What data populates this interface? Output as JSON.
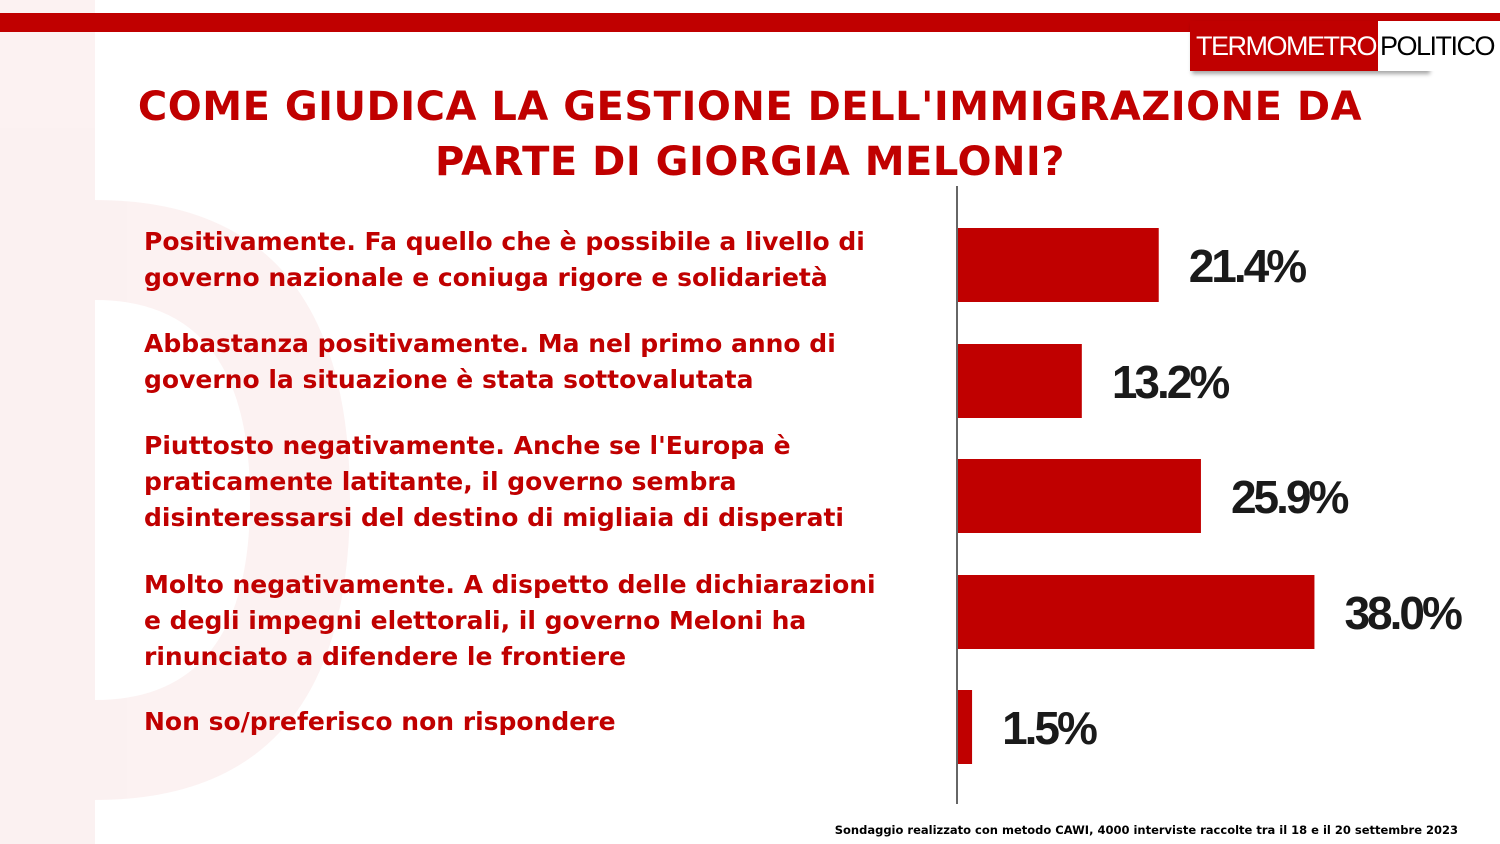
{
  "brand": {
    "logo_left": "TERMOMETRO",
    "logo_right": "POLITICO",
    "accent_color": "#c00000"
  },
  "title": {
    "line1": "COME GIUDICA LA GESTIONE DELL'IMMIGRAZIONE DA",
    "line2": "PARTE DI GIORGIA MELONI?"
  },
  "answers": [
    {
      "lines": [
        "Positivamente. Fa quello che è possibile a livello di",
        "governo nazionale e coniuga rigore e solidarietà"
      ]
    },
    {
      "lines": [
        "Abbastanza positivamente. Ma nel primo anno di",
        "governo la situazione è stata sottovalutata"
      ]
    },
    {
      "lines": [
        "Piuttosto negativamente. Anche se l'Europa è",
        "praticamente latitante, il governo sembra",
        "disinteressarsi del destino di migliaia di disperati"
      ]
    },
    {
      "lines": [
        "Molto negativamente. A dispetto delle dichiarazioni",
        "e degli impegni elettorali, il governo Meloni ha",
        "rinunciato a difendere le frontiere"
      ]
    },
    {
      "lines": [
        "Non so/preferisco non rispondere"
      ]
    }
  ],
  "chart_data": {
    "type": "bar",
    "orientation": "horizontal",
    "title": "COME GIUDICA LA GESTIONE DELL'IMMIGRAZIONE DA PARTE DI GIORGIA MELONI?",
    "categories": [
      "Positivamente. Fa quello che è possibile a livello di governo nazionale e coniuga rigore e solidarietà",
      "Abbastanza positivamente. Ma nel primo anno di governo la situazione è stata sottovalutata",
      "Piuttosto negativamente. Anche se l'Europa è praticamente latitante, il governo sembra disinteressarsi del destino di migliaia di disperati",
      "Molto negativamente. A dispetto delle dichiarazioni e degli impegni elettorali, il governo Meloni ha rinunciato a difendere le frontiere",
      "Non so/preferisco non rispondere"
    ],
    "values": [
      21.4,
      13.2,
      25.9,
      38.0,
      1.5
    ],
    "value_labels": [
      "21.4%",
      "13.2%",
      "25.9%",
      "38.0%",
      "1.5%"
    ],
    "unit": "%",
    "xlim": [
      0,
      60
    ],
    "bar_color": "#c00000",
    "grid": false,
    "legend": "none"
  },
  "footnote": "Sondaggio realizzato con metodo CAWI, 4000 interviste raccolte tra il 18 e il 20 settembre 2023"
}
